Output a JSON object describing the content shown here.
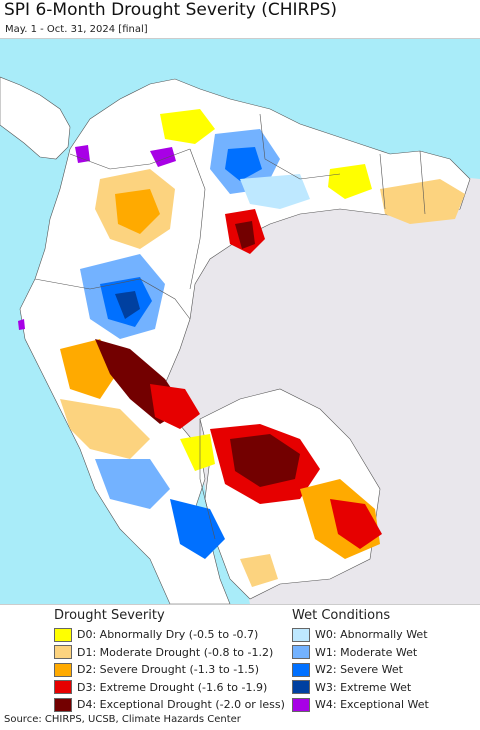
{
  "title": "SPI 6-Month Drought Severity (CHIRPS)",
  "subtitle": "May. 1 - Oct. 31, 2024 [final]",
  "source": "Source: CHIRPS, UCSB, Climate Hazards Center",
  "colors": {
    "ocean": "#a9ecf9",
    "land": "#ffffff",
    "outside": "#e9e7ec",
    "border": "#555555"
  },
  "legend": {
    "drought": {
      "heading": "Drought Severity",
      "items": [
        {
          "label": "D0: Abnormally Dry (-0.5 to -0.7)",
          "color": "#ffff00"
        },
        {
          "label": "D1: Moderate Drought (-0.8 to -1.2)",
          "color": "#fcd37f"
        },
        {
          "label": "D2: Severe Drought (-1.3 to -1.5)",
          "color": "#ffaa00"
        },
        {
          "label": "D3: Extreme Drought (-1.6 to -1.9)",
          "color": "#e60000"
        },
        {
          "label": "D4: Exceptional Drought (-2.0 or less)",
          "color": "#730000"
        }
      ]
    },
    "wet": {
      "heading": "Wet Conditions",
      "items": [
        {
          "label": "W0: Abnormally Wet",
          "color": "#bee8ff"
        },
        {
          "label": "W1: Moderate Wet",
          "color": "#73b2ff"
        },
        {
          "label": "W2: Severe Wet",
          "color": "#0070ff"
        },
        {
          "label": "W3: Extreme Wet",
          "color": "#0040a0"
        },
        {
          "label": "W4: Exceptional Wet",
          "color": "#a800e6"
        }
      ]
    }
  }
}
